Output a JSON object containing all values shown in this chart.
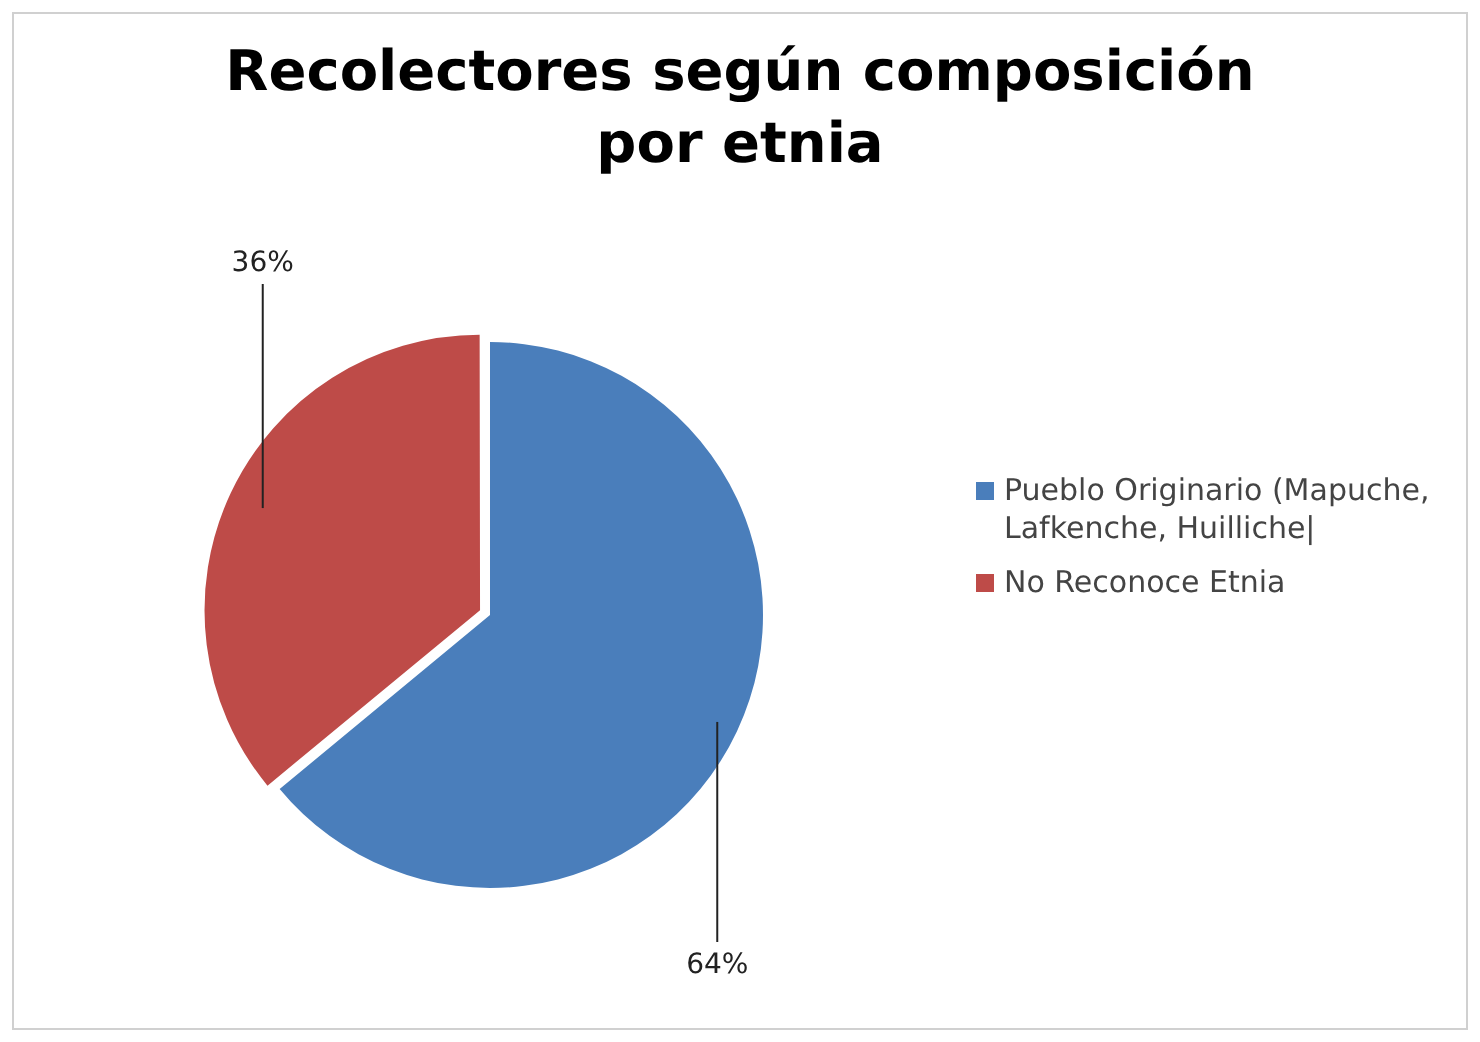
{
  "chart_data": {
    "type": "pie",
    "title": "Recolectores según composición por etnia",
    "categories": [
      "Pueblo Originario (Mapuche, Lafkenche, Huilliche|",
      "No Reconoce Etnia"
    ],
    "values": [
      64,
      36
    ],
    "colors": [
      "#4a7ebb",
      "#be4b48"
    ],
    "value_labels": [
      "64%",
      "36%"
    ],
    "legend": "right"
  }
}
